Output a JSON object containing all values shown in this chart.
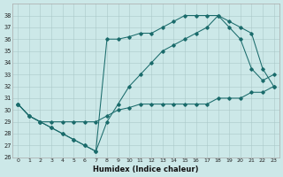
{
  "xlabel": "Humidex (Indice chaleur)",
  "background_color": "#cce8e8",
  "line_color": "#1a6b6b",
  "grid_color": "#aac8c8",
  "xlim": [
    -0.5,
    23.5
  ],
  "ylim": [
    26,
    39
  ],
  "yticks": [
    26,
    27,
    28,
    29,
    30,
    31,
    32,
    33,
    34,
    35,
    36,
    37,
    38
  ],
  "xticks": [
    0,
    1,
    2,
    3,
    4,
    5,
    6,
    7,
    8,
    9,
    10,
    11,
    12,
    13,
    14,
    15,
    16,
    17,
    18,
    19,
    20,
    21,
    22,
    23
  ],
  "line1_x": [
    0,
    1,
    2,
    3,
    4,
    5,
    6,
    7,
    8,
    9,
    10,
    11,
    12,
    13,
    14,
    15,
    16,
    17,
    18,
    19,
    20,
    21,
    22,
    23
  ],
  "line1_y": [
    30.5,
    29.5,
    29.0,
    29.0,
    29.0,
    29.0,
    29.0,
    29.0,
    29.5,
    30.0,
    30.2,
    30.5,
    30.5,
    30.5,
    30.5,
    30.5,
    30.5,
    30.5,
    31.0,
    31.0,
    31.0,
    31.5,
    31.5,
    32.0
  ],
  "line2_x": [
    0,
    1,
    2,
    3,
    4,
    5,
    6,
    7,
    8,
    9,
    10,
    11,
    12,
    13,
    14,
    15,
    16,
    17,
    18,
    19,
    20,
    21,
    22,
    23
  ],
  "line2_y": [
    30.5,
    29.5,
    29.0,
    28.5,
    28.0,
    27.5,
    27.0,
    26.5,
    36.0,
    36.0,
    36.2,
    36.5,
    36.5,
    37.0,
    37.5,
    38.0,
    38.0,
    38.0,
    38.0,
    37.0,
    36.0,
    33.5,
    32.5,
    33.0
  ],
  "line3_x": [
    0,
    1,
    2,
    3,
    4,
    5,
    6,
    7,
    8,
    9,
    10,
    11,
    12,
    13,
    14,
    15,
    16,
    17,
    18,
    19,
    20,
    21,
    22,
    23
  ],
  "line3_y": [
    30.5,
    29.5,
    29.0,
    28.5,
    28.0,
    27.5,
    27.0,
    26.5,
    29.0,
    30.5,
    32.0,
    33.0,
    34.0,
    35.0,
    35.5,
    36.0,
    36.5,
    37.0,
    38.0,
    37.5,
    37.0,
    36.5,
    33.5,
    32.0
  ]
}
